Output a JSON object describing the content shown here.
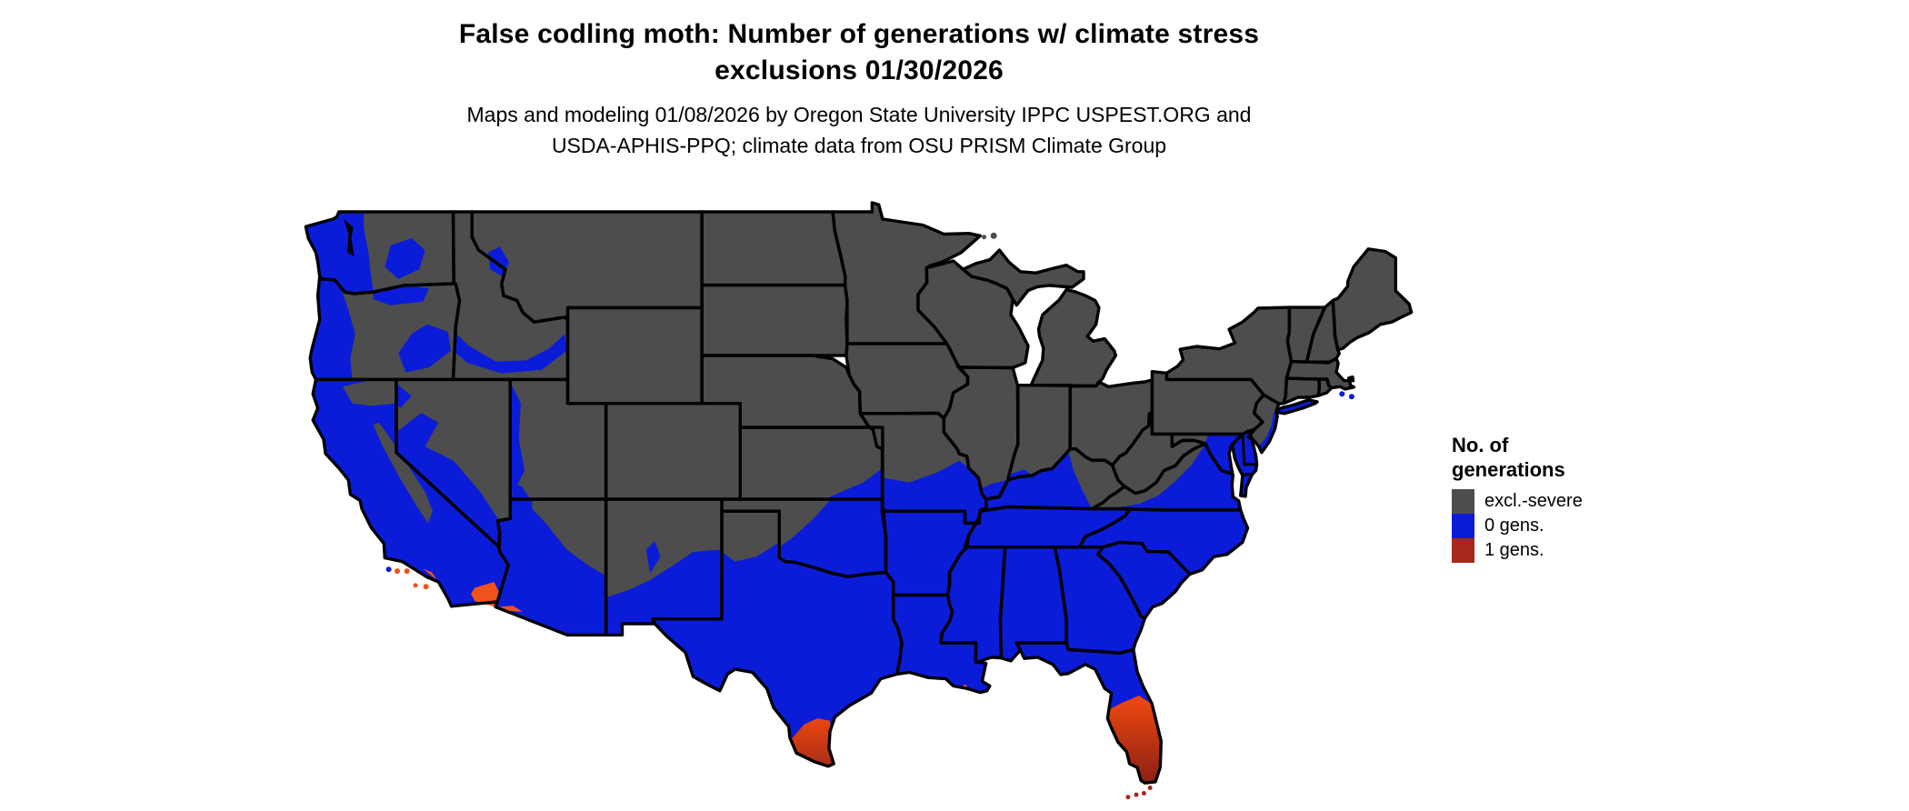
{
  "title": {
    "line1": "False codling moth: Number of generations w/ climate stress",
    "line2": "exclusions 01/30/2026"
  },
  "subtitle": {
    "line1": "Maps and modeling 01/08/2026 by Oregon State University IPPC USPEST.ORG and",
    "line2": "USDA-APHIS-PPQ; climate data from OSU PRISM Climate Group"
  },
  "legend": {
    "title": {
      "line1": "No. of",
      "line2": "generations"
    },
    "items": [
      {
        "key": "excluded",
        "label": "excl.-severe",
        "color": "#4d4d4d"
      },
      {
        "key": "zero",
        "label": "0 gens.",
        "color": "#0b1cd9"
      },
      {
        "key": "one",
        "label": "1 gens.",
        "color": "#a5281a"
      }
    ]
  },
  "map": {
    "type": "choropleth-raster",
    "region": "Contiguous United States",
    "classes": [
      "excl.-severe",
      "0 gens.",
      "1 gens."
    ],
    "colors": {
      "excluded": "#4d4d4d",
      "zero": "#0b1cd9",
      "one": "#a5281a",
      "warm_high": "#f1490f",
      "warm_low_fl": "#8c2015",
      "warm_low_tx": "#a82c18",
      "socal_orange": "#f0521c",
      "border": "#000000",
      "water": "#ffffff"
    }
  }
}
